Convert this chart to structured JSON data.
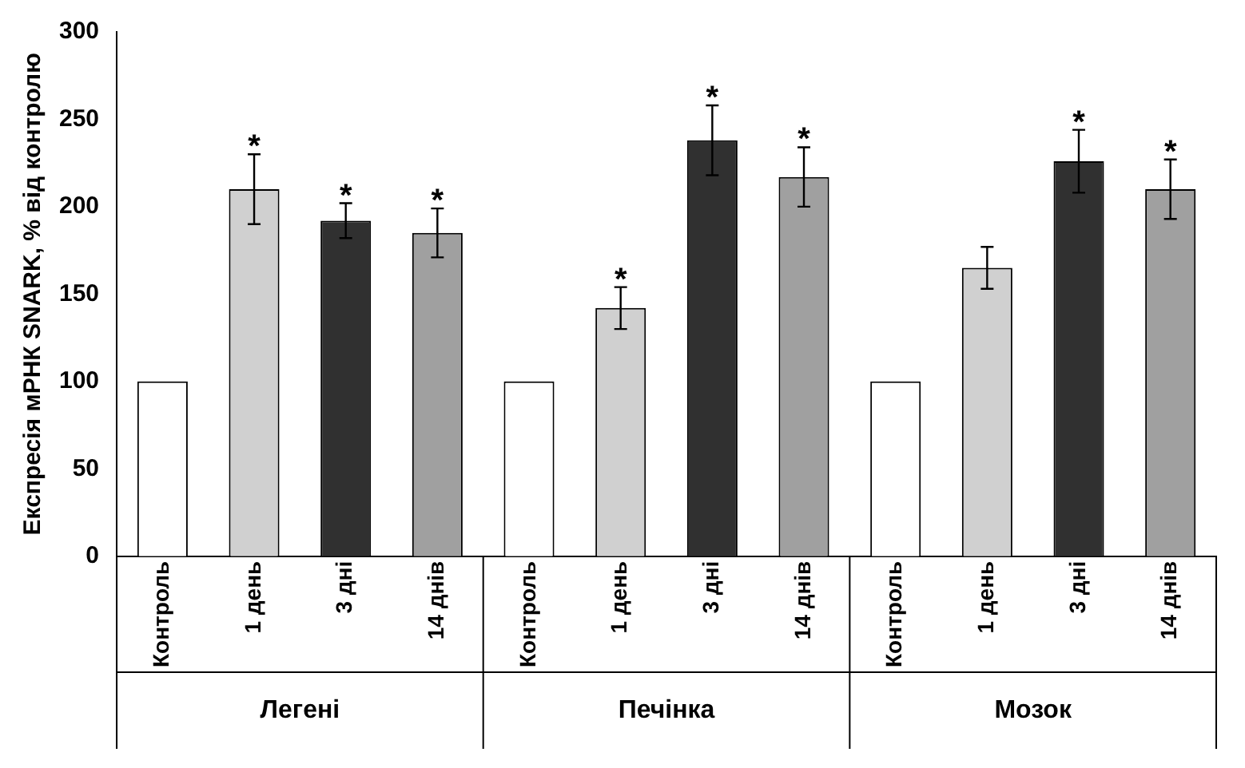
{
  "chart_data": {
    "type": "bar",
    "ylabel": "Експресія мРНК SNARK, % від контролю",
    "categories": [
      "Контроль",
      "1 день",
      "3 дні",
      "14 днів",
      "Контроль",
      "1 день",
      "3 дні",
      "14 днів",
      "Контроль",
      "1 день",
      "3 дні",
      "14 днів"
    ],
    "values": [
      100,
      210,
      192,
      185,
      100,
      142,
      238,
      217,
      100,
      165,
      226,
      210
    ],
    "errors": [
      null,
      20,
      10,
      14,
      null,
      12,
      20,
      17,
      null,
      12,
      18,
      17
    ],
    "value_labels": [
      null,
      "*",
      "*",
      "*",
      null,
      "*",
      "*",
      "*",
      null,
      null,
      "*",
      "*"
    ],
    "colors": [
      "#ffffff",
      "#d0d0d0",
      "#303030",
      "#a0a0a0",
      "#ffffff",
      "#d0d0d0",
      "#303030",
      "#a0a0a0",
      "#ffffff",
      "#d0d0d0",
      "#303030",
      "#a0a0a0"
    ],
    "annotations": [
      "Легені",
      "Печінка",
      "Мозок"
    ],
    "ylim": [
      0,
      300
    ],
    "yticks": [
      0,
      50,
      100,
      150,
      200,
      250,
      300
    ],
    "grid": false,
    "legend": false
  }
}
